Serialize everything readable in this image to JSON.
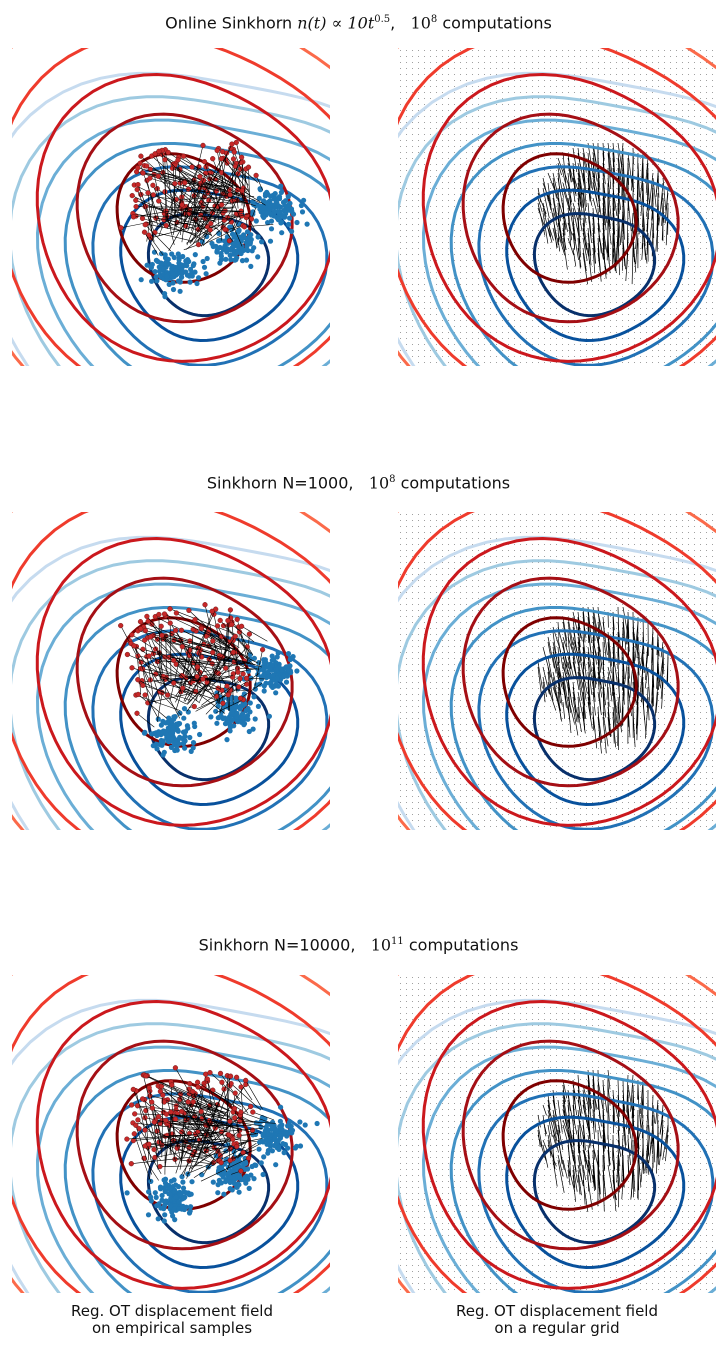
{
  "rows": [
    {
      "title_prefix": "Online Sinkhorn ",
      "title_math": "n(t) ∝ 10t",
      "title_math_exp": "0.5",
      "title_sep": ",",
      "computations_base": "10",
      "computations_exp": "8",
      "computations_suffix": " computations"
    },
    {
      "title_prefix": "Sinkhorn N=1000,",
      "title_math": "",
      "title_math_exp": "",
      "title_sep": "",
      "computations_base": "10",
      "computations_exp": "8",
      "computations_suffix": " computations"
    },
    {
      "title_prefix": "Sinkhorn N=10000,",
      "title_math": "",
      "title_math_exp": "",
      "title_sep": "",
      "computations_base": "10",
      "computations_exp": "11",
      "computations_suffix": " computations"
    }
  ],
  "captions": {
    "left_line1": "Reg. OT displacement field",
    "left_line2": "on empirical samples",
    "right_line1": "Reg. OT displacement field",
    "right_line2": "on a regular grid"
  },
  "colors": {
    "source_points": "#c62828",
    "target_points": "#1f77b4",
    "arrows": "#000000",
    "red_contours": [
      "#7f0000",
      "#a50f15",
      "#cb181d",
      "#ef3b2c",
      "#fb6a4a",
      "#fcae91"
    ],
    "blue_contours": [
      "#08306b",
      "#08519c",
      "#2171b5",
      "#4292c6",
      "#6baed6",
      "#9ecae1",
      "#c6dbef"
    ]
  }
}
